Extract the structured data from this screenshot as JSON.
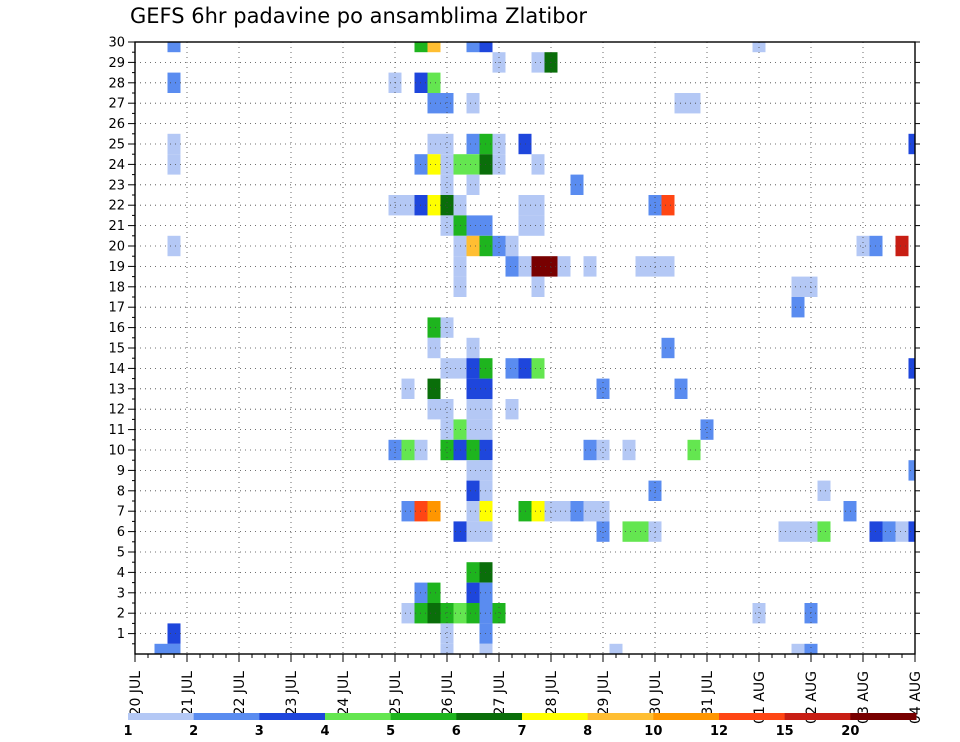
{
  "chart_data": {
    "type": "heatmap",
    "title": "GEFS 6hr padavine po ansamblima Zlatibor",
    "xlabel": "",
    "ylabel": "",
    "x_ticks": [
      "20 JUL",
      "21 JUL",
      "22 JUL",
      "23 JUL",
      "24 JUL",
      "25 JUL",
      "26 JUL",
      "27 JUL",
      "28 JUL",
      "29 JUL",
      "30 JUL",
      "31 JUL",
      "01 AUG",
      "02 AUG",
      "03 AUG",
      "04 AUG"
    ],
    "x_range_days": [
      0,
      15
    ],
    "y_ticks": [
      1,
      2,
      3,
      4,
      5,
      6,
      7,
      8,
      9,
      10,
      11,
      12,
      13,
      14,
      15,
      16,
      17,
      18,
      19,
      20,
      21,
      22,
      23,
      24,
      25,
      26,
      27,
      28,
      29,
      30
    ],
    "y_range": [
      0,
      30
    ],
    "grid": true,
    "colorbar": {
      "levels": [
        "1",
        "2",
        "3",
        "4",
        "5",
        "6",
        "7",
        "8",
        "10",
        "12",
        "15",
        "20"
      ],
      "colors": [
        "#b4c8f5",
        "#5a8cf0",
        "#1e46dc",
        "#64e650",
        "#1eb41e",
        "#0a6e0a",
        "#ffff00",
        "#ffbe32",
        "#ff9600",
        "#ff4614",
        "#c81e14",
        "#780000"
      ]
    },
    "cells": [
      [
        0.5,
        0,
        1
      ],
      [
        0.75,
        0,
        1
      ],
      [
        0.75,
        1,
        2
      ],
      [
        0.75,
        24,
        0
      ],
      [
        0.75,
        25,
        0
      ],
      [
        0.75,
        28,
        1
      ],
      [
        0.75,
        30,
        1
      ],
      [
        0.75,
        20,
        0
      ],
      [
        5,
        28,
        0
      ],
      [
        5,
        22,
        0
      ],
      [
        5,
        10,
        1
      ],
      [
        5.25,
        22,
        0
      ],
      [
        5.25,
        13,
        0
      ],
      [
        5.25,
        10,
        3
      ],
      [
        5.25,
        7,
        1
      ],
      [
        5.25,
        2,
        0
      ],
      [
        5.5,
        30,
        4
      ],
      [
        5.5,
        28,
        2
      ],
      [
        5.5,
        24,
        1
      ],
      [
        5.5,
        22,
        2
      ],
      [
        5.5,
        10,
        0
      ],
      [
        5.5,
        7,
        9
      ],
      [
        5.5,
        3,
        1
      ],
      [
        5.5,
        2,
        4
      ],
      [
        5.75,
        30,
        7
      ],
      [
        5.75,
        28,
        3
      ],
      [
        5.75,
        27,
        1
      ],
      [
        5.75,
        25,
        0
      ],
      [
        5.75,
        24,
        6
      ],
      [
        5.75,
        22,
        6
      ],
      [
        5.75,
        16,
        4
      ],
      [
        5.75,
        15,
        0
      ],
      [
        5.75,
        13,
        5
      ],
      [
        5.75,
        12,
        0
      ],
      [
        5.75,
        7,
        8
      ],
      [
        5.75,
        3,
        4
      ],
      [
        5.75,
        2,
        5
      ],
      [
        6,
        27,
        1
      ],
      [
        6,
        25,
        0
      ],
      [
        6,
        24,
        0
      ],
      [
        6,
        23,
        0
      ],
      [
        6,
        22,
        5
      ],
      [
        6,
        21,
        0
      ],
      [
        6,
        16,
        0
      ],
      [
        6,
        14,
        0
      ],
      [
        6,
        12,
        0
      ],
      [
        6,
        11,
        0
      ],
      [
        6,
        10,
        4
      ],
      [
        6,
        2,
        4
      ],
      [
        6,
        1,
        0
      ],
      [
        6,
        0,
        0
      ],
      [
        6.25,
        24,
        3
      ],
      [
        6.25,
        22,
        0
      ],
      [
        6.25,
        21,
        4
      ],
      [
        6.25,
        20,
        0
      ],
      [
        6.25,
        19,
        0
      ],
      [
        6.25,
        18,
        0
      ],
      [
        6.25,
        14,
        0
      ],
      [
        6.25,
        11,
        3
      ],
      [
        6.25,
        10,
        2
      ],
      [
        6.25,
        6,
        2
      ],
      [
        6.25,
        2,
        3
      ],
      [
        6.5,
        30,
        1
      ],
      [
        6.5,
        27,
        0
      ],
      [
        6.5,
        25,
        1
      ],
      [
        6.5,
        24,
        3
      ],
      [
        6.5,
        23,
        0
      ],
      [
        6.5,
        21,
        1
      ],
      [
        6.5,
        20,
        7
      ],
      [
        6.5,
        15,
        0
      ],
      [
        6.5,
        14,
        2
      ],
      [
        6.5,
        13,
        2
      ],
      [
        6.5,
        12,
        0
      ],
      [
        6.5,
        11,
        0
      ],
      [
        6.5,
        10,
        4
      ],
      [
        6.5,
        9,
        0
      ],
      [
        6.5,
        8,
        2
      ],
      [
        6.5,
        7,
        0
      ],
      [
        6.5,
        6,
        0
      ],
      [
        6.5,
        4,
        4
      ],
      [
        6.5,
        3,
        2
      ],
      [
        6.5,
        2,
        4
      ],
      [
        6.75,
        30,
        2
      ],
      [
        6.75,
        25,
        4
      ],
      [
        6.75,
        24,
        5
      ],
      [
        6.75,
        21,
        1
      ],
      [
        6.75,
        20,
        4
      ],
      [
        6.75,
        14,
        4
      ],
      [
        6.75,
        13,
        2
      ],
      [
        6.75,
        12,
        0
      ],
      [
        6.75,
        11,
        0
      ],
      [
        6.75,
        10,
        2
      ],
      [
        6.75,
        9,
        0
      ],
      [
        6.75,
        8,
        0
      ],
      [
        6.75,
        7,
        6
      ],
      [
        6.75,
        6,
        0
      ],
      [
        6.75,
        4,
        5
      ],
      [
        6.75,
        3,
        1
      ],
      [
        6.75,
        2,
        1
      ],
      [
        6.75,
        1,
        1
      ],
      [
        6.75,
        0,
        0
      ],
      [
        7,
        29,
        0
      ],
      [
        7,
        25,
        0
      ],
      [
        7,
        24,
        0
      ],
      [
        7,
        20,
        1
      ],
      [
        7,
        2,
        4
      ],
      [
        7.25,
        20,
        0
      ],
      [
        7.25,
        19,
        1
      ],
      [
        7.25,
        14,
        1
      ],
      [
        7.25,
        12,
        0
      ],
      [
        7.5,
        25,
        2
      ],
      [
        7.5,
        22,
        0
      ],
      [
        7.5,
        21,
        0
      ],
      [
        7.5,
        19,
        0
      ],
      [
        7.5,
        14,
        2
      ],
      [
        7.5,
        7,
        4
      ],
      [
        7.75,
        29,
        0
      ],
      [
        7.75,
        24,
        0
      ],
      [
        7.75,
        22,
        0
      ],
      [
        7.75,
        21,
        0
      ],
      [
        7.75,
        19,
        11
      ],
      [
        7.75,
        18,
        0
      ],
      [
        7.75,
        14,
        3
      ],
      [
        7.75,
        7,
        6
      ],
      [
        8,
        29,
        5
      ],
      [
        8,
        19,
        11
      ],
      [
        8,
        7,
        0
      ],
      [
        8.25,
        19,
        0
      ],
      [
        8.25,
        7,
        0
      ],
      [
        8.5,
        23,
        1
      ],
      [
        8.5,
        7,
        1
      ],
      [
        8.75,
        19,
        0
      ],
      [
        8.75,
        10,
        1
      ],
      [
        8.75,
        7,
        0
      ],
      [
        9,
        13,
        1
      ],
      [
        9,
        10,
        0
      ],
      [
        9,
        7,
        0
      ],
      [
        9,
        6,
        1
      ],
      [
        9.25,
        0,
        0
      ],
      [
        9.5,
        10,
        0
      ],
      [
        9.5,
        6,
        3
      ],
      [
        9.75,
        19,
        0
      ],
      [
        9.75,
        6,
        3
      ],
      [
        10,
        22,
        1
      ],
      [
        10,
        19,
        0
      ],
      [
        10,
        8,
        1
      ],
      [
        10,
        6,
        0
      ],
      [
        10.25,
        22,
        9
      ],
      [
        10.25,
        19,
        0
      ],
      [
        10.25,
        15,
        1
      ],
      [
        10.5,
        27,
        0
      ],
      [
        10.5,
        13,
        1
      ],
      [
        10.75,
        27,
        0
      ],
      [
        10.75,
        10,
        3
      ],
      [
        11,
        11,
        1
      ],
      [
        12,
        30,
        0
      ],
      [
        12,
        2,
        0
      ],
      [
        12.5,
        6,
        0
      ],
      [
        12.75,
        18,
        0
      ],
      [
        12.75,
        17,
        1
      ],
      [
        12.75,
        6,
        0
      ],
      [
        12.75,
        0,
        0
      ],
      [
        13,
        18,
        0
      ],
      [
        13,
        6,
        0
      ],
      [
        13,
        2,
        1
      ],
      [
        13,
        0,
        1
      ],
      [
        13.25,
        8,
        0
      ],
      [
        13.25,
        6,
        3
      ],
      [
        13.75,
        7,
        1
      ],
      [
        14,
        20,
        0
      ],
      [
        14.25,
        20,
        1
      ],
      [
        14.25,
        6,
        2
      ],
      [
        14.5,
        6,
        1
      ],
      [
        14.75,
        20,
        10
      ],
      [
        14.75,
        6,
        0
      ],
      [
        15,
        25,
        2
      ],
      [
        15,
        14,
        2
      ],
      [
        15,
        9,
        1
      ],
      [
        15,
        6,
        2
      ]
    ]
  }
}
